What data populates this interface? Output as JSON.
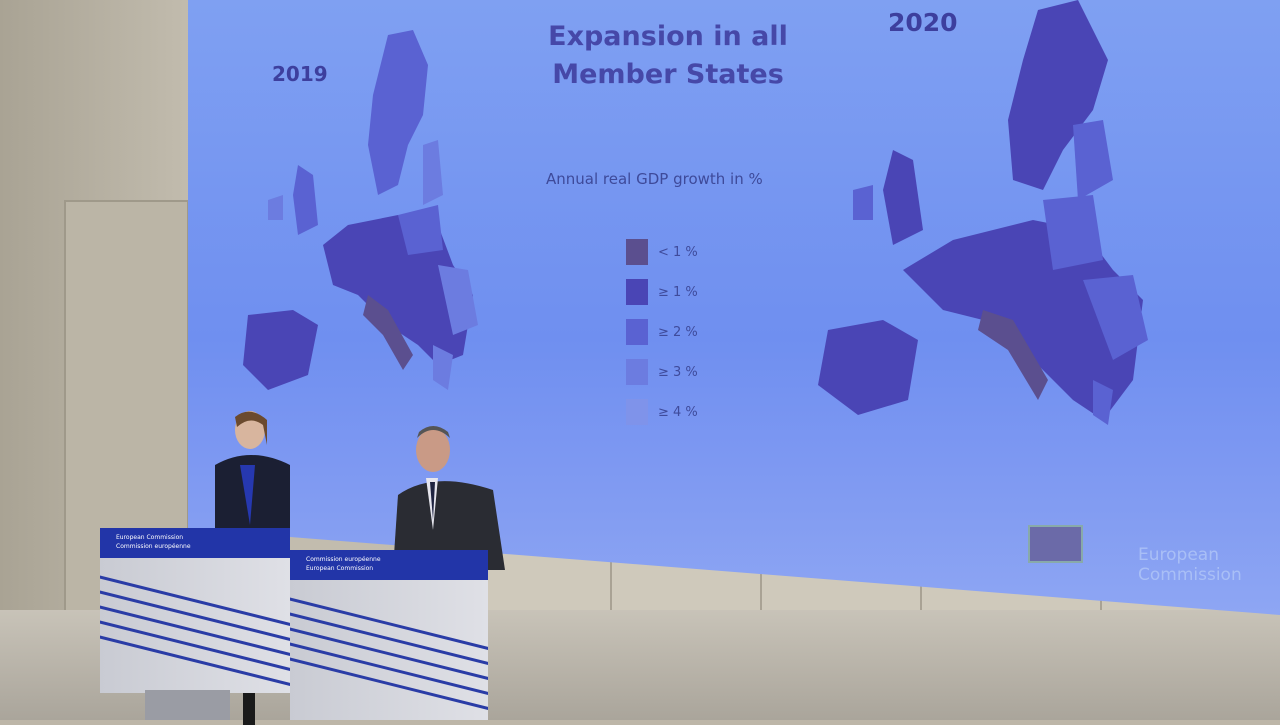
{
  "slide": {
    "title": "Expansion in all Member States",
    "year_left": "2019",
    "year_right": "2020",
    "subtitle": "Annual real GDP growth in %",
    "legend": [
      {
        "label": "< 1 %",
        "color": "#5b4f8f"
      },
      {
        "label": "≥ 1 %",
        "color": "#4a45b5"
      },
      {
        "label": "≥ 2 %",
        "color": "#5a62d2"
      },
      {
        "label": "≥ 3 %",
        "color": "#6c7ce0"
      },
      {
        "label": "≥ 4 %",
        "color": "#7f93ea"
      }
    ],
    "branding": "European Commission"
  },
  "podiums": [
    {
      "sign_line1": "European Commission",
      "sign_line2": "Commission européenne"
    },
    {
      "sign_line1": "Commission européenne",
      "sign_line2": "European Commission"
    }
  ]
}
